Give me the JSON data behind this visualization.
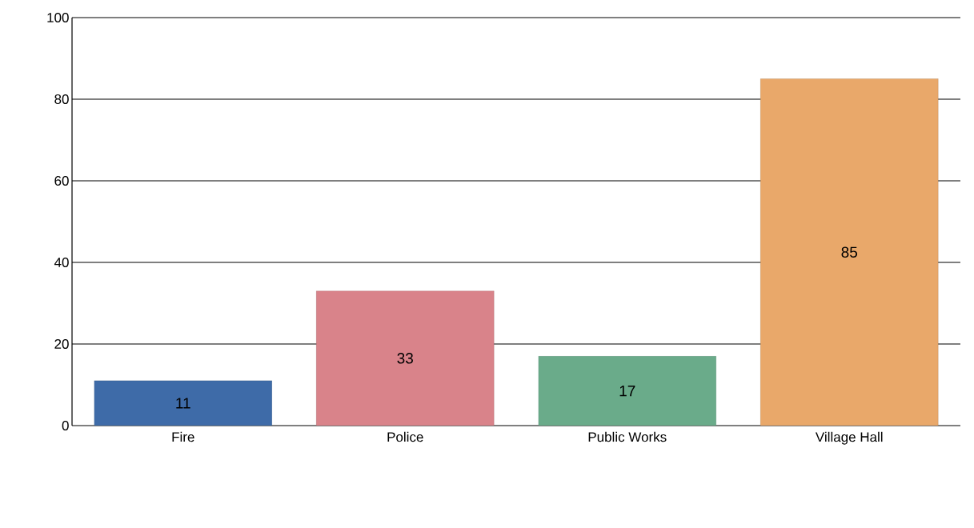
{
  "chart_data": {
    "type": "bar",
    "categories": [
      "Fire",
      "Police",
      "Public Works",
      "Village Hall"
    ],
    "values": [
      11,
      33,
      17,
      85
    ],
    "colors": [
      "#3e6ba8",
      "#d9838a",
      "#6aab8a",
      "#e9a86a"
    ],
    "ylim": [
      0,
      100
    ],
    "yticks": [
      0,
      20,
      40,
      60,
      80,
      100
    ],
    "grid": "y",
    "data_labels": true
  }
}
